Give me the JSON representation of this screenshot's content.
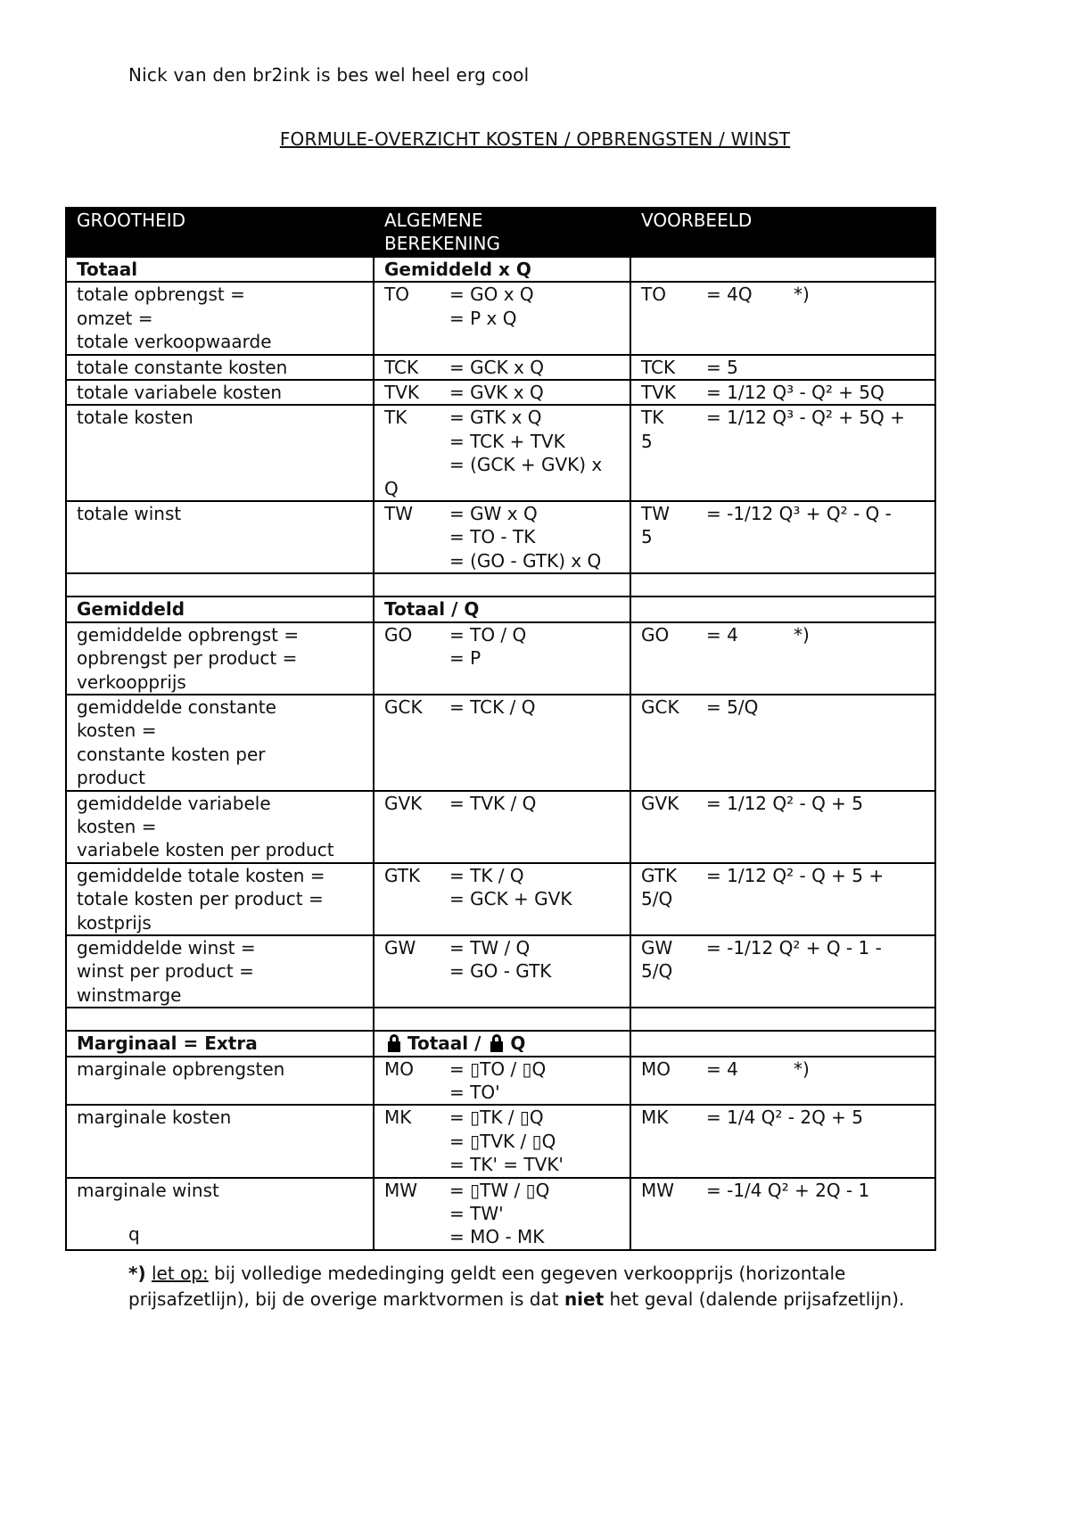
{
  "top_line": "Nick van den br2ink is bes wel heel erg cool",
  "heading": "FORMULE-OVERZICHT KOSTEN / OPBRENGSTEN / WINST",
  "table": {
    "header": [
      "GROOTHEID",
      "ALGEMENE\nBEREKENING",
      "VOORBEELD"
    ],
    "rows": [
      {
        "type": "sec",
        "c1": "Totaal",
        "c2": "Gemiddeld x Q"
      },
      {
        "type": "row",
        "c1": [
          "totale opbrengst =",
          "omzet =",
          "totale verkoopwaarde"
        ],
        "c2": [
          [
            "TO",
            "= GO x Q"
          ],
          [
            "",
            "= P x Q"
          ]
        ],
        "c3": [
          [
            "TO",
            "= 4Q",
            "*)"
          ]
        ]
      },
      {
        "type": "row",
        "c1": [
          "totale constante kosten"
        ],
        "c2": [
          [
            "TCK",
            "= GCK x Q"
          ]
        ],
        "c3": [
          [
            "TCK",
            "= 5"
          ]
        ]
      },
      {
        "type": "row",
        "c1": [
          "totale variabele kosten"
        ],
        "c2": [
          [
            "TVK",
            "= GVK x Q"
          ]
        ],
        "c3": [
          [
            "TVK",
            "= 1/12 Q³ - Q² + 5Q"
          ]
        ]
      },
      {
        "type": "row",
        "c1": [
          "totale kosten"
        ],
        "c2": [
          [
            "TK",
            "= GTK x Q"
          ],
          [
            "",
            "= TCK + TVK"
          ],
          [
            "",
            "= (GCK + GVK) x"
          ],
          [
            "Q",
            ""
          ]
        ],
        "c3": [
          [
            "TK",
            "= 1/12 Q³ - Q² + 5Q +"
          ],
          [
            "5",
            ""
          ]
        ]
      },
      {
        "type": "row",
        "c1": [
          "totale winst"
        ],
        "c2": [
          [
            "TW",
            "= GW x Q"
          ],
          [
            "",
            "= TO - TK"
          ],
          [
            "",
            "= (GO - GTK) x Q"
          ]
        ],
        "c3": [
          [
            "TW",
            "= -1/12 Q³ + Q² - Q -"
          ],
          [
            "5",
            ""
          ]
        ]
      },
      {
        "type": "empty"
      },
      {
        "type": "sec",
        "c1": "Gemiddeld",
        "c2": "Totaal / Q"
      },
      {
        "type": "row",
        "c1": [
          "gemiddelde opbrengst =",
          "opbrengst per product =",
          "verkoopprijs"
        ],
        "c2": [
          [
            "GO",
            "= TO / Q"
          ],
          [
            "",
            "= P"
          ]
        ],
        "c3": [
          [
            "GO",
            "= 4",
            "*)"
          ]
        ]
      },
      {
        "type": "row",
        "c1": [
          "gemiddelde constante",
          "kosten =",
          "constante kosten per",
          "product"
        ],
        "c2": [
          [
            "GCK",
            "= TCK / Q"
          ]
        ],
        "c3": [
          [
            "GCK",
            "= 5/Q"
          ]
        ]
      },
      {
        "type": "row",
        "c1": [
          "gemiddelde variabele",
          "kosten =",
          "variabele kosten per product"
        ],
        "c2": [
          [
            "GVK",
            "= TVK / Q"
          ]
        ],
        "c3": [
          [
            "GVK",
            "= 1/12 Q² - Q + 5"
          ]
        ]
      },
      {
        "type": "row",
        "c1": [
          "gemiddelde totale kosten =",
          "totale kosten per product =",
          "kostprijs"
        ],
        "c2": [
          [
            "GTK",
            "= TK / Q"
          ],
          [
            "",
            "= GCK + GVK"
          ]
        ],
        "c3": [
          [
            "GTK",
            "= 1/12 Q² - Q + 5 +"
          ],
          [
            "5/Q",
            ""
          ]
        ]
      },
      {
        "type": "row",
        "c1": [
          "gemiddelde winst =",
          "winst per product =",
          "winstmarge"
        ],
        "c2": [
          [
            "GW",
            "= TW / Q"
          ],
          [
            "",
            "= GO - GTK"
          ]
        ],
        "c3": [
          [
            "GW",
            "= -1/12 Q² + Q - 1 -"
          ],
          [
            "5/Q",
            ""
          ]
        ]
      },
      {
        "type": "empty"
      },
      {
        "type": "sec",
        "c1": "Marginaal = Extra",
        "c2": "Totaal / ",
        "c2b": "Q",
        "icon": "unknown-glyph-icon"
      },
      {
        "type": "row",
        "c1": [
          "marginale opbrengsten"
        ],
        "c2": [
          [
            "MO",
            "= ▯TO / ▯Q"
          ],
          [
            "",
            "= TO'"
          ]
        ],
        "c3": [
          [
            "MO",
            "= 4",
            "*)"
          ]
        ]
      },
      {
        "type": "row",
        "c1": [
          "marginale kosten"
        ],
        "c2": [
          [
            "MK",
            "= ▯TK / ▯Q"
          ],
          [
            "",
            "= ▯TVK / ▯Q"
          ],
          [
            "",
            "= TK' = TVK'"
          ]
        ],
        "c3": [
          [
            "MK",
            "= 1/4 Q² - 2Q + 5"
          ]
        ]
      },
      {
        "type": "row",
        "c1": [
          "marginale winst"
        ],
        "c2": [
          [
            "MW",
            "= ▯TW / ▯Q"
          ],
          [
            "",
            "= TW'"
          ],
          [
            "",
            "= MO - MK"
          ]
        ],
        "c3": [
          [
            "MW",
            "= -1/4 Q² + 2Q - 1"
          ]
        ]
      }
    ]
  },
  "stray_char": "q",
  "note": {
    "star": "*)",
    "let_op": "let op:",
    "part1": " bij volledige mededinging geldt een gegeven verkoopprijs (horizontale prijsafzetlijn), bij de overige marktvormen is dat ",
    "niet": "niet",
    "part2": " het geval (dalende prijsafzetlijn)."
  }
}
